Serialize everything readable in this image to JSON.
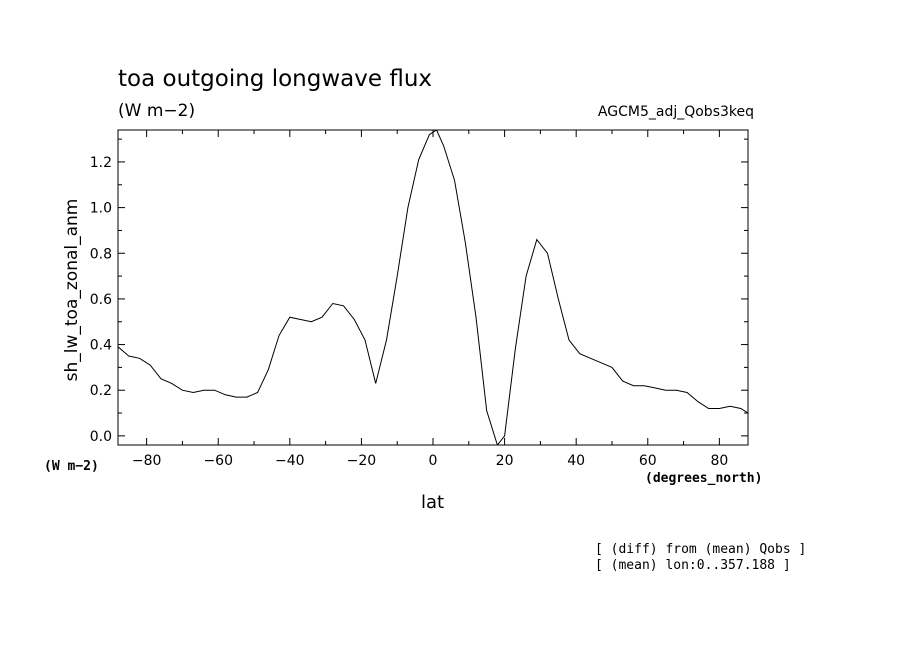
{
  "header": {
    "title": "toa outgoing longwave flux",
    "units": "(W m−2)",
    "run_name": "AGCM5_adj_Qobs3keq"
  },
  "footer": {
    "note_line1": "[ (diff) from (mean) Qobs ]",
    "note_line2": "[ (mean) lon:0..357.188 ]"
  },
  "colors": {
    "line": "#000000",
    "axes": "#000000",
    "background": "#ffffff"
  },
  "chart_data": {
    "type": "line",
    "title": "toa outgoing longwave flux",
    "subtitle": "(W m−2)",
    "xlabel": "lat",
    "ylabel": "sh_lw_toa_zonal_anm",
    "x_units": "(degrees_north)",
    "y_units": "(W m−2)",
    "xlim": [
      -88,
      88
    ],
    "ylim": [
      -0.04,
      1.34
    ],
    "x_ticks": [
      -80,
      -60,
      -40,
      -20,
      0,
      20,
      40,
      60,
      80
    ],
    "x_tick_labels": [
      "−80",
      "−60",
      "−40",
      "−20",
      "0",
      "20",
      "40",
      "60",
      "80"
    ],
    "y_ticks": [
      0.0,
      0.2,
      0.4,
      0.6,
      0.8,
      1.0,
      1.2
    ],
    "y_tick_labels": [
      "0.0",
      "0.2",
      "0.4",
      "0.6",
      "0.8",
      "1.0",
      "1.2"
    ],
    "grid": false,
    "series": [
      {
        "x": [
          -88,
          -85,
          -82,
          -79,
          -76,
          -73,
          -70,
          -67,
          -64,
          -61,
          -58,
          -55,
          -52,
          -49,
          -46,
          -43,
          -40,
          -37,
          -34,
          -31,
          -28,
          -25,
          -22,
          -19,
          -16,
          -13,
          -10,
          -7,
          -4,
          -1,
          1,
          3,
          6,
          9,
          12,
          15,
          18,
          20,
          23,
          26,
          29,
          32,
          35,
          38,
          41,
          44,
          47,
          50,
          53,
          56,
          59,
          62,
          65,
          68,
          71,
          74,
          77,
          80,
          83,
          86,
          88
        ],
        "y": [
          0.39,
          0.35,
          0.34,
          0.31,
          0.25,
          0.23,
          0.2,
          0.19,
          0.2,
          0.2,
          0.18,
          0.17,
          0.17,
          0.19,
          0.29,
          0.44,
          0.52,
          0.51,
          0.5,
          0.52,
          0.58,
          0.57,
          0.51,
          0.42,
          0.23,
          0.42,
          0.7,
          1.0,
          1.21,
          1.32,
          1.34,
          1.27,
          1.12,
          0.85,
          0.52,
          0.11,
          -0.04,
          0.0,
          0.38,
          0.7,
          0.86,
          0.8,
          0.6,
          0.42,
          0.36,
          0.34,
          0.32,
          0.3,
          0.24,
          0.22,
          0.22,
          0.21,
          0.2,
          0.2,
          0.19,
          0.15,
          0.12,
          0.12,
          0.13,
          0.12,
          0.1
        ]
      }
    ]
  }
}
